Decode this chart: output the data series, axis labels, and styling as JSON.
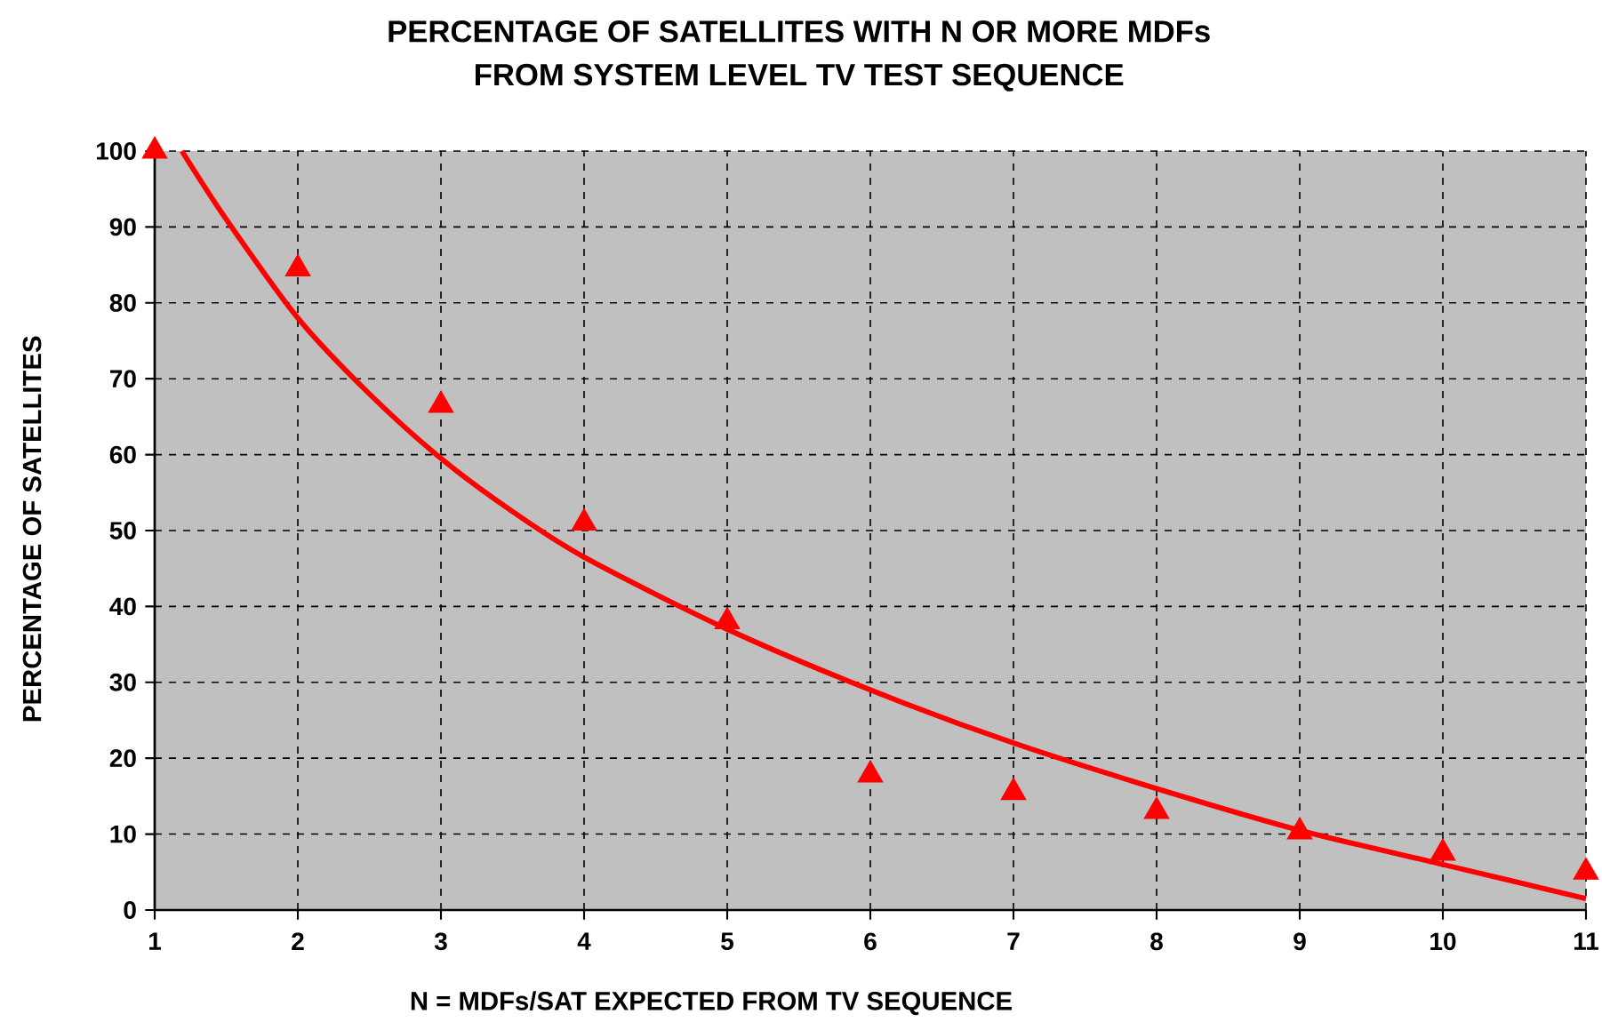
{
  "chart_data": {
    "type": "scatter",
    "title": "PERCENTAGE OF SATELLITES WITH N OR MORE MDFs",
    "subtitle": "FROM SYSTEM LEVEL TV TEST SEQUENCE",
    "xlabel": "N = MDFs/SAT EXPECTED FROM TV SEQUENCE",
    "ylabel": "PERCENTAGE OF SATELLITES",
    "xlim": [
      1,
      11
    ],
    "ylim": [
      0,
      100
    ],
    "xticks": [
      1,
      2,
      3,
      4,
      5,
      6,
      7,
      8,
      9,
      10,
      11
    ],
    "yticks": [
      0,
      10,
      20,
      30,
      40,
      50,
      60,
      70,
      80,
      90,
      100
    ],
    "grid": true,
    "series": [
      {
        "marker": "triangle",
        "color": "#ff0000",
        "x": [
          1,
          2,
          3,
          4,
          5,
          6,
          7,
          8,
          9,
          10,
          11
        ],
        "values": [
          100,
          84.5,
          66.5,
          51,
          38,
          17.8,
          15.5,
          13,
          10.3,
          7.5,
          5
        ]
      },
      {
        "type": "line",
        "marker": "none",
        "line_style": "solid",
        "color": "#ff0000",
        "x": [
          1.19,
          1.5,
          2,
          2.5,
          3,
          3.5,
          4,
          5,
          6,
          7,
          8,
          9,
          10,
          11
        ],
        "values": [
          100,
          91,
          78,
          68,
          59.5,
          52.5,
          46.5,
          37,
          29,
          22,
          16,
          10.5,
          6,
          1.5
        ]
      }
    ]
  }
}
